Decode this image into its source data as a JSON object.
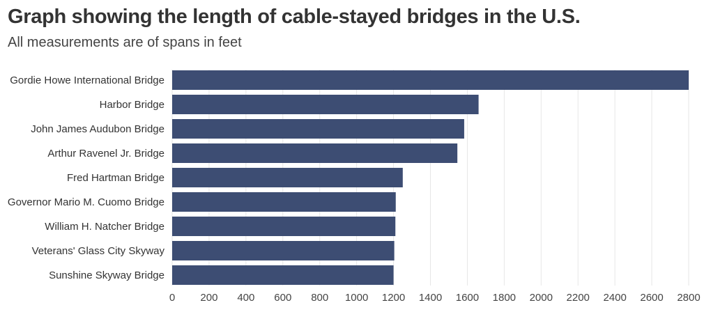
{
  "title": "Graph showing the length of cable-stayed bridges in the U.S.",
  "subtitle": "All measurements are of spans in feet",
  "colors": {
    "bar": "#3d4d73",
    "grid": "#e6e6e6",
    "text": "#333333"
  },
  "chart_data": {
    "type": "bar",
    "orientation": "horizontal",
    "categories": [
      "Gordie Howe International Bridge",
      "Harbor Bridge",
      "John James Audubon Bridge",
      "Arthur Ravenel Jr. Bridge",
      "Fred Hartman Bridge",
      "Governor Mario M. Cuomo Bridge",
      "William H. Natcher Bridge",
      "Veterans' Glass City Skyway",
      "Sunshine Skyway Bridge"
    ],
    "values": [
      2800,
      1661,
      1583,
      1546,
      1250,
      1212,
      1210,
      1204,
      1200
    ],
    "xlim": [
      0,
      2800
    ],
    "xticks": [
      0,
      200,
      400,
      600,
      800,
      1000,
      1200,
      1400,
      1600,
      1800,
      2000,
      2200,
      2400,
      2600,
      2800
    ],
    "grid": true,
    "legend": "none"
  }
}
